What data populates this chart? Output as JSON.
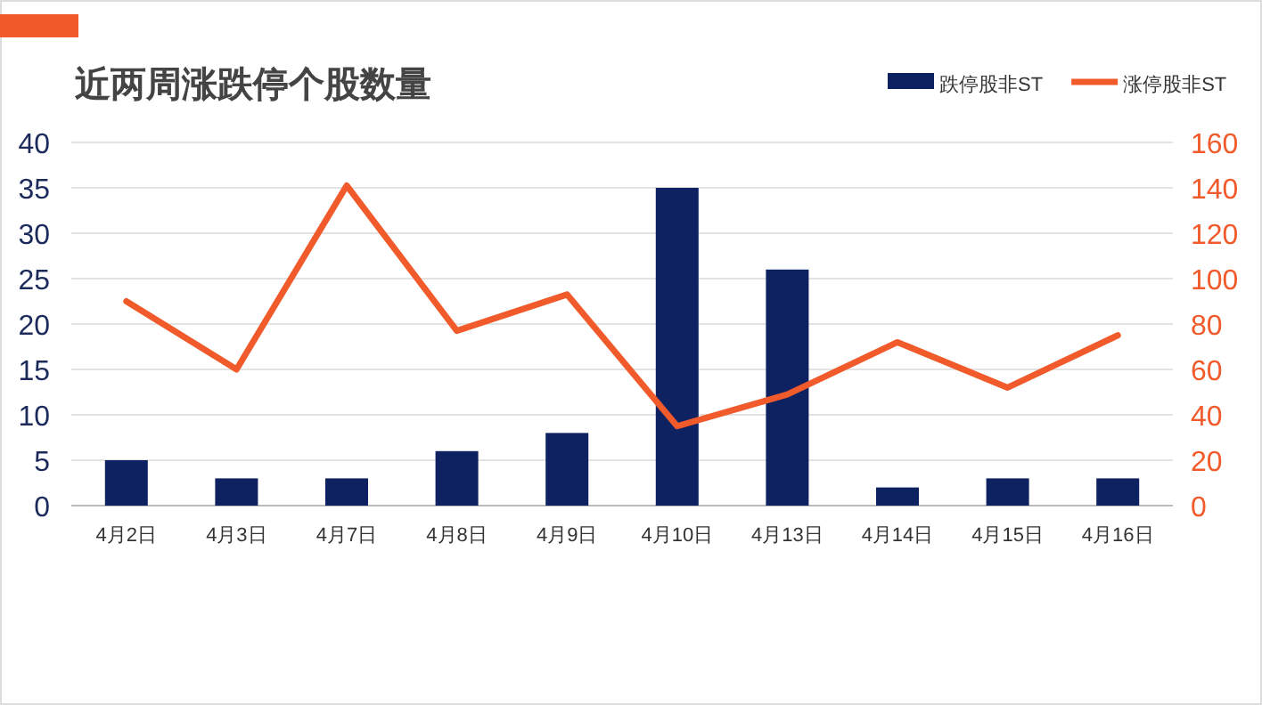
{
  "chart_data": {
    "type": "bar",
    "title": "近两周涨跌停个股数量",
    "categories": [
      "4月2日",
      "4月3日",
      "4月7日",
      "4月8日",
      "4月9日",
      "4月10日",
      "4月13日",
      "4月14日",
      "4月15日",
      "4月16日"
    ],
    "series": [
      {
        "name": "跌停股非ST",
        "color": "#0e2160",
        "values": [
          5,
          3,
          3,
          6,
          8,
          35,
          26,
          2,
          3,
          3
        ]
      },
      {
        "name": "涨停股非ST",
        "type": "line",
        "axis": "y2",
        "color": "#f15a2b",
        "values": [
          90,
          60,
          141,
          77,
          93,
          35,
          49,
          72,
          52,
          75
        ]
      }
    ],
    "ylim": [
      0,
      40
    ],
    "yticks": [
      0,
      5,
      10,
      15,
      20,
      25,
      30,
      35,
      40
    ],
    "y2lim": [
      0,
      160
    ],
    "y2ticks": [
      0,
      20,
      40,
      60,
      80,
      100,
      120,
      140,
      160
    ],
    "grid": "y",
    "legend": "top right"
  }
}
